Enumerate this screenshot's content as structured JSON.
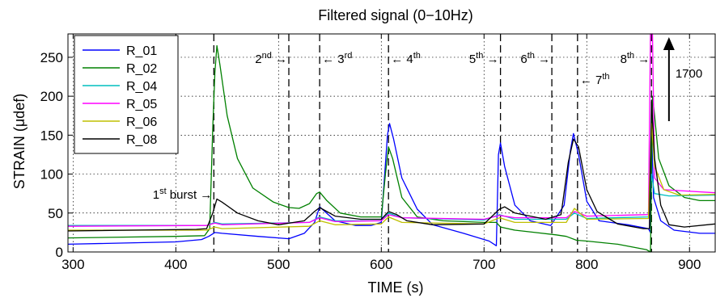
{
  "chart_data": {
    "type": "line",
    "title": "Filtered signal (0−10Hz)",
    "xlabel": "TIME (s)",
    "ylabel": "STRAIN (μdef)",
    "xlim": [
      295,
      925
    ],
    "ylim": [
      0,
      280
    ],
    "xticks": [
      300,
      400,
      500,
      600,
      700,
      800,
      900
    ],
    "yticks": [
      0,
      50,
      100,
      150,
      200,
      250
    ],
    "grid": true,
    "legend_position": "top-left",
    "series": [
      {
        "name": "R_01",
        "color": "#0000ff",
        "points": [
          [
            295,
            10
          ],
          [
            400,
            13
          ],
          [
            425,
            16
          ],
          [
            432,
            20
          ],
          [
            438,
            25
          ],
          [
            445,
            24
          ],
          [
            480,
            20
          ],
          [
            510,
            17
          ],
          [
            525,
            24
          ],
          [
            535,
            38
          ],
          [
            540,
            58
          ],
          [
            545,
            52
          ],
          [
            555,
            40
          ],
          [
            575,
            34
          ],
          [
            590,
            34
          ],
          [
            600,
            38
          ],
          [
            606,
            150
          ],
          [
            608,
            165
          ],
          [
            612,
            145
          ],
          [
            620,
            95
          ],
          [
            635,
            55
          ],
          [
            650,
            35
          ],
          [
            680,
            24
          ],
          [
            705,
            14
          ],
          [
            712,
            8
          ],
          [
            714,
            125
          ],
          [
            716,
            140
          ],
          [
            720,
            110
          ],
          [
            730,
            60
          ],
          [
            745,
            40
          ],
          [
            765,
            34
          ],
          [
            778,
            60
          ],
          [
            784,
            130
          ],
          [
            787,
            152
          ],
          [
            792,
            125
          ],
          [
            800,
            65
          ],
          [
            812,
            40
          ],
          [
            840,
            35
          ],
          [
            860,
            30
          ],
          [
            862,
            25
          ],
          [
            863,
            160
          ],
          [
            865,
            70
          ],
          [
            872,
            40
          ],
          [
            885,
            28
          ],
          [
            910,
            24
          ],
          [
            925,
            24
          ]
        ]
      },
      {
        "name": "R_02",
        "color": "#008000",
        "points": [
          [
            295,
            18
          ],
          [
            400,
            20
          ],
          [
            428,
            21
          ],
          [
            433,
            30
          ],
          [
            436,
            160
          ],
          [
            438,
            230
          ],
          [
            440,
            265
          ],
          [
            443,
            240
          ],
          [
            450,
            175
          ],
          [
            460,
            120
          ],
          [
            475,
            82
          ],
          [
            495,
            64
          ],
          [
            510,
            57
          ],
          [
            520,
            56
          ],
          [
            530,
            62
          ],
          [
            537,
            75
          ],
          [
            540,
            77
          ],
          [
            547,
            66
          ],
          [
            560,
            50
          ],
          [
            580,
            45
          ],
          [
            600,
            45
          ],
          [
            604,
            100
          ],
          [
            607,
            135
          ],
          [
            611,
            120
          ],
          [
            620,
            70
          ],
          [
            635,
            45
          ],
          [
            660,
            40
          ],
          [
            700,
            38
          ],
          [
            712,
            38
          ],
          [
            716,
            32
          ],
          [
            730,
            28
          ],
          [
            750,
            25
          ],
          [
            770,
            22
          ],
          [
            780,
            20
          ],
          [
            790,
            15
          ],
          [
            800,
            14
          ],
          [
            830,
            10
          ],
          [
            858,
            3
          ],
          [
            862,
            0
          ],
          [
            864,
            200
          ],
          [
            866,
            175
          ],
          [
            870,
            120
          ],
          [
            880,
            85
          ],
          [
            895,
            70
          ],
          [
            910,
            66
          ],
          [
            925,
            66
          ]
        ]
      },
      {
        "name": "R_04",
        "color": "#00bfbf",
        "points": [
          [
            295,
            34
          ],
          [
            430,
            34
          ],
          [
            438,
            38
          ],
          [
            445,
            36
          ],
          [
            530,
            38
          ],
          [
            540,
            45
          ],
          [
            555,
            40
          ],
          [
            600,
            40
          ],
          [
            607,
            50
          ],
          [
            620,
            44
          ],
          [
            700,
            41
          ],
          [
            715,
            48
          ],
          [
            730,
            42
          ],
          [
            780,
            42
          ],
          [
            788,
            50
          ],
          [
            800,
            43
          ],
          [
            860,
            45
          ],
          [
            863,
            100
          ],
          [
            866,
            75
          ],
          [
            880,
            72
          ],
          [
            925,
            73
          ]
        ]
      },
      {
        "name": "R_05",
        "color": "#ff00ff",
        "points": [
          [
            295,
            33
          ],
          [
            430,
            34
          ],
          [
            438,
            37
          ],
          [
            445,
            35
          ],
          [
            530,
            38
          ],
          [
            540,
            44
          ],
          [
            555,
            39
          ],
          [
            600,
            40
          ],
          [
            607,
            48
          ],
          [
            620,
            44
          ],
          [
            700,
            42
          ],
          [
            715,
            47
          ],
          [
            730,
            44
          ],
          [
            780,
            44
          ],
          [
            788,
            52
          ],
          [
            800,
            46
          ],
          [
            860,
            48
          ],
          [
            862,
            280
          ],
          [
            864,
            280
          ],
          [
            866,
            95
          ],
          [
            875,
            80
          ],
          [
            925,
            76
          ]
        ]
      },
      {
        "name": "R_06",
        "color": "#bfbf00",
        "points": [
          [
            295,
            28
          ],
          [
            430,
            28
          ],
          [
            438,
            32
          ],
          [
            445,
            30
          ],
          [
            530,
            33
          ],
          [
            540,
            40
          ],
          [
            555,
            35
          ],
          [
            600,
            36
          ],
          [
            607,
            45
          ],
          [
            620,
            38
          ],
          [
            700,
            36
          ],
          [
            715,
            44
          ],
          [
            730,
            38
          ],
          [
            780,
            38
          ],
          [
            788,
            56
          ],
          [
            800,
            42
          ],
          [
            860,
            43
          ],
          [
            863,
            165
          ],
          [
            866,
            110
          ],
          [
            875,
            80
          ],
          [
            890,
            73
          ],
          [
            925,
            74
          ]
        ]
      },
      {
        "name": "R_08",
        "color": "#000000",
        "points": [
          [
            295,
            27
          ],
          [
            420,
            29
          ],
          [
            430,
            30
          ],
          [
            436,
            50
          ],
          [
            440,
            68
          ],
          [
            445,
            64
          ],
          [
            460,
            50
          ],
          [
            480,
            40
          ],
          [
            500,
            35
          ],
          [
            525,
            40
          ],
          [
            535,
            52
          ],
          [
            540,
            57
          ],
          [
            555,
            46
          ],
          [
            580,
            42
          ],
          [
            600,
            42
          ],
          [
            607,
            52
          ],
          [
            615,
            48
          ],
          [
            625,
            40
          ],
          [
            650,
            35
          ],
          [
            700,
            36
          ],
          [
            715,
            55
          ],
          [
            720,
            58
          ],
          [
            730,
            50
          ],
          [
            760,
            42
          ],
          [
            775,
            48
          ],
          [
            782,
            115
          ],
          [
            787,
            145
          ],
          [
            792,
            135
          ],
          [
            800,
            80
          ],
          [
            810,
            52
          ],
          [
            830,
            36
          ],
          [
            855,
            30
          ],
          [
            861,
            30
          ],
          [
            863,
            195
          ],
          [
            866,
            120
          ],
          [
            872,
            60
          ],
          [
            880,
            35
          ],
          [
            895,
            32
          ],
          [
            925,
            36
          ]
        ]
      }
    ],
    "bursts": [
      {
        "x": 437,
        "label": "1",
        "suffix": "st",
        "rest": "burst",
        "arrow": "→"
      },
      {
        "x": 510,
        "label": "2",
        "suffix": "nd",
        "arrow": "→"
      },
      {
        "x": 540,
        "label": "3",
        "suffix": "rd",
        "arrow": "←"
      },
      {
        "x": 607,
        "label": "4",
        "suffix": "th",
        "arrow": "←"
      },
      {
        "x": 716,
        "label": "5",
        "suffix": "th",
        "arrow": "→"
      },
      {
        "x": 766,
        "label": "6",
        "suffix": "th",
        "arrow": "→"
      },
      {
        "x": 791,
        "label": "7",
        "suffix": "th",
        "arrow": "←"
      },
      {
        "x": 863,
        "label": "8",
        "suffix": "th",
        "arrow": "→"
      }
    ],
    "peak_annotation": {
      "value": "1700",
      "x": 880
    }
  }
}
